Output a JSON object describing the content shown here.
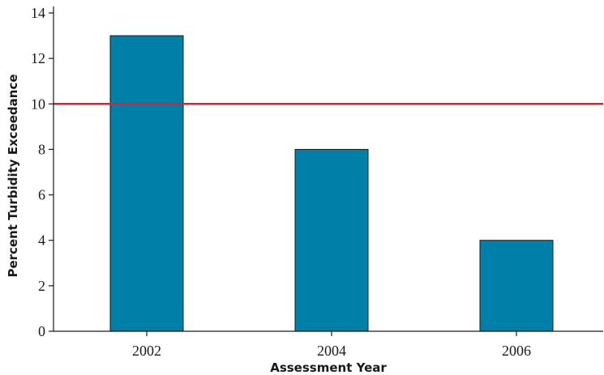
{
  "chart_data": {
    "type": "bar",
    "categories": [
      "2002",
      "2004",
      "2006"
    ],
    "values": [
      13,
      8,
      4
    ],
    "xlabel": "Assessment Year",
    "ylabel": "Percent Turbidity Exceedance",
    "ylim": [
      0,
      14
    ],
    "yticks": [
      "0",
      "2",
      "4",
      "6",
      "8",
      "10",
      "12",
      "14"
    ],
    "reference_line": {
      "y": 10,
      "color": "#e0202e"
    },
    "bar_color": "#0080a8",
    "grid": false,
    "legend": "none"
  }
}
